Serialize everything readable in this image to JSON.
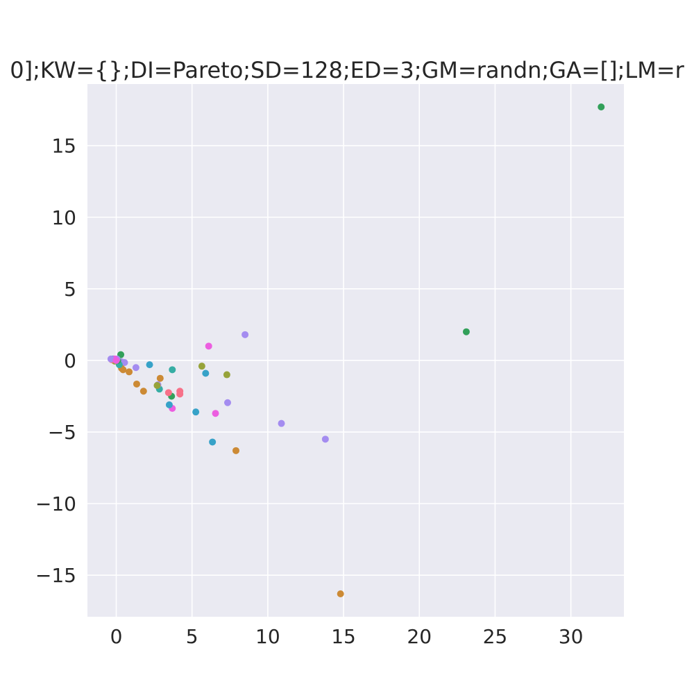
{
  "chart_data": {
    "type": "scatter",
    "title": "0];KW={};DI=Pareto;SD=128;ED=3;GM=randn;GA=[];LM=r",
    "xlabel": "",
    "ylabel": "",
    "xlim": [
      -1.9,
      33.5
    ],
    "ylim": [
      -17.9,
      19.3
    ],
    "xticks": [
      0,
      5,
      10,
      15,
      20,
      25,
      30
    ],
    "xtick_labels": [
      "0",
      "5",
      "10",
      "15",
      "20",
      "25",
      "30"
    ],
    "yticks": [
      -15,
      -10,
      -5,
      0,
      5,
      10,
      15
    ],
    "ytick_labels": [
      "−15",
      "−10",
      "−5",
      "0",
      "5",
      "10",
      "15"
    ],
    "grid": true,
    "background": "#eaeaf2",
    "points": [
      {
        "x": 32.0,
        "y": 17.7,
        "color": "#32a05a"
      },
      {
        "x": 23.1,
        "y": 2.0,
        "color": "#32a05a"
      },
      {
        "x": 14.8,
        "y": -16.3,
        "color": "#cc8a35"
      },
      {
        "x": 13.8,
        "y": -5.5,
        "color": "#a48cf0"
      },
      {
        "x": 10.9,
        "y": -4.4,
        "color": "#a48cf0"
      },
      {
        "x": 8.5,
        "y": 1.8,
        "color": "#a48cf0"
      },
      {
        "x": 7.9,
        "y": -6.3,
        "color": "#cc8a35"
      },
      {
        "x": 7.3,
        "y": -1.0,
        "color": "#97a33a"
      },
      {
        "x": 7.35,
        "y": -2.95,
        "color": "#a48cf0"
      },
      {
        "x": 6.1,
        "y": 1.0,
        "color": "#ec5ee0"
      },
      {
        "x": 6.55,
        "y": -3.7,
        "color": "#ec5ee0"
      },
      {
        "x": 6.35,
        "y": -5.7,
        "color": "#37a2c8"
      },
      {
        "x": 5.9,
        "y": -0.9,
        "color": "#37a2c8"
      },
      {
        "x": 5.65,
        "y": -0.4,
        "color": "#97a33a"
      },
      {
        "x": 5.25,
        "y": -3.6,
        "color": "#37a2c8"
      },
      {
        "x": 4.2,
        "y": -2.15,
        "color": "#f77189"
      },
      {
        "x": 4.2,
        "y": -2.35,
        "color": "#f77189"
      },
      {
        "x": 3.7,
        "y": -0.65,
        "color": "#36ada4"
      },
      {
        "x": 3.7,
        "y": -3.35,
        "color": "#ec5ee0"
      },
      {
        "x": 3.65,
        "y": -2.5,
        "color": "#32a05a"
      },
      {
        "x": 3.5,
        "y": -3.1,
        "color": "#37a2c8"
      },
      {
        "x": 3.45,
        "y": -2.25,
        "color": "#f77189"
      },
      {
        "x": 2.9,
        "y": -1.25,
        "color": "#cc8a35"
      },
      {
        "x": 2.85,
        "y": -2.0,
        "color": "#36ada4"
      },
      {
        "x": 2.75,
        "y": -1.7,
        "color": "#a48cf0"
      },
      {
        "x": 2.7,
        "y": -1.75,
        "color": "#97a33a"
      },
      {
        "x": 2.2,
        "y": -0.3,
        "color": "#37a2c8"
      },
      {
        "x": 1.8,
        "y": -2.15,
        "color": "#cc8a35"
      },
      {
        "x": 1.35,
        "y": -1.65,
        "color": "#cc8a35"
      },
      {
        "x": 1.3,
        "y": -0.5,
        "color": "#a48cf0"
      },
      {
        "x": 0.85,
        "y": -0.8,
        "color": "#cc8a35"
      },
      {
        "x": 0.55,
        "y": -0.15,
        "color": "#a48cf0"
      },
      {
        "x": 0.45,
        "y": -0.65,
        "color": "#cc8a35"
      },
      {
        "x": 0.35,
        "y": -0.55,
        "color": "#cc8a35"
      },
      {
        "x": 0.3,
        "y": 0.4,
        "color": "#32a05a"
      },
      {
        "x": 0.35,
        "y": -0.1,
        "color": "#a48cf0"
      },
      {
        "x": 0.2,
        "y": -0.3,
        "color": "#36ada4"
      },
      {
        "x": 0.1,
        "y": 0.0,
        "color": "#32a05a"
      },
      {
        "x": 0.05,
        "y": 0.1,
        "color": "#a48cf0"
      },
      {
        "x": -0.1,
        "y": -0.05,
        "color": "#97a33a"
      },
      {
        "x": -0.2,
        "y": 0.1,
        "color": "#37a2c8"
      },
      {
        "x": -0.3,
        "y": 0.05,
        "color": "#f77189"
      },
      {
        "x": -0.1,
        "y": 0.1,
        "color": "#ec5ee0"
      },
      {
        "x": -0.35,
        "y": 0.1,
        "color": "#a48cf0"
      },
      {
        "x": 0.0,
        "y": 0.0,
        "color": "#ec5ee0"
      }
    ]
  }
}
